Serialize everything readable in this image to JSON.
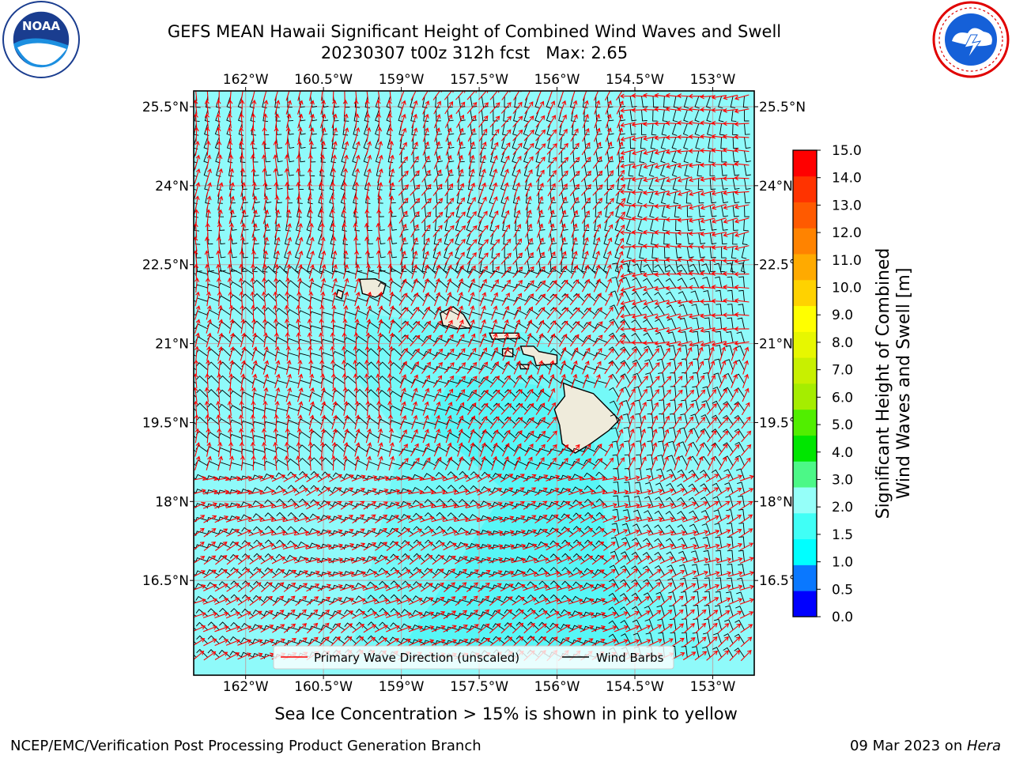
{
  "header": {
    "title_line1": "GEFS MEAN Hawaii Significant Height of Combined Wind Waves and Swell",
    "title_line2": "20230307 t00z 312h fcst   Max: 2.65"
  },
  "logos": {
    "left": {
      "icon": "noaa-logo-icon",
      "text": "NOAA",
      "ring_text": "NATIONAL OCEANIC AND ATMOSPHERIC ADMINISTRATION · U.S. DEPARTMENT OF COMMERCE"
    },
    "right": {
      "icon": "nws-logo-icon",
      "ring_text": "NATIONAL WEATHER SERVICE"
    }
  },
  "map": {
    "lon_range": [
      -163.0,
      -152.2
    ],
    "lat_range": [
      14.7,
      25.8
    ],
    "lon_ticks": [
      "162°W",
      "160.5°W",
      "159°W",
      "157.5°W",
      "156°W",
      "154.5°W",
      "153°W"
    ],
    "lat_ticks": [
      "25.5°N",
      "24°N",
      "22.5°N",
      "21°N",
      "19.5°N",
      "18°N",
      "16.5°N"
    ],
    "ocean_color": "#8ffafa",
    "land_color": "#efebdb",
    "gridlines": true
  },
  "legend": {
    "placement": "lower-center",
    "items": [
      {
        "label": "Primary Wave Direction (unscaled)",
        "color": "#ff0000"
      },
      {
        "label": "Wind Barbs",
        "color": "#000000"
      }
    ]
  },
  "colorbar": {
    "label_line1": "Significant Height of Combined",
    "label_line2": "Wind Waves and Swell [m]",
    "ticks": [
      "15.0",
      "14.0",
      "13.0",
      "12.0",
      "11.0",
      "10.0",
      "9.0",
      "8.0",
      "7.0",
      "6.0",
      "5.0",
      "4.0",
      "3.0",
      "2.0",
      "1.5",
      "1.0",
      "0.5",
      "0.0"
    ],
    "colors": [
      "#0000ff",
      "#0a78ff",
      "#00ffff",
      "#40fff6",
      "#95fff9",
      "#4cf887",
      "#00e600",
      "#51ee00",
      "#a5ed00",
      "#c8f000",
      "#e7f700",
      "#ffff00",
      "#ffd200",
      "#ffaa00",
      "#ff8300",
      "#ff5a00",
      "#ff3300",
      "#ff0000"
    ]
  },
  "footer": {
    "note": "Sea Ice Concentration > 15% is shown in pink to yellow",
    "org": "NCEP/EMC/Verification Post Processing Product Generation Branch",
    "date": "09 Mar 2023 on ",
    "machine": "Hera"
  }
}
